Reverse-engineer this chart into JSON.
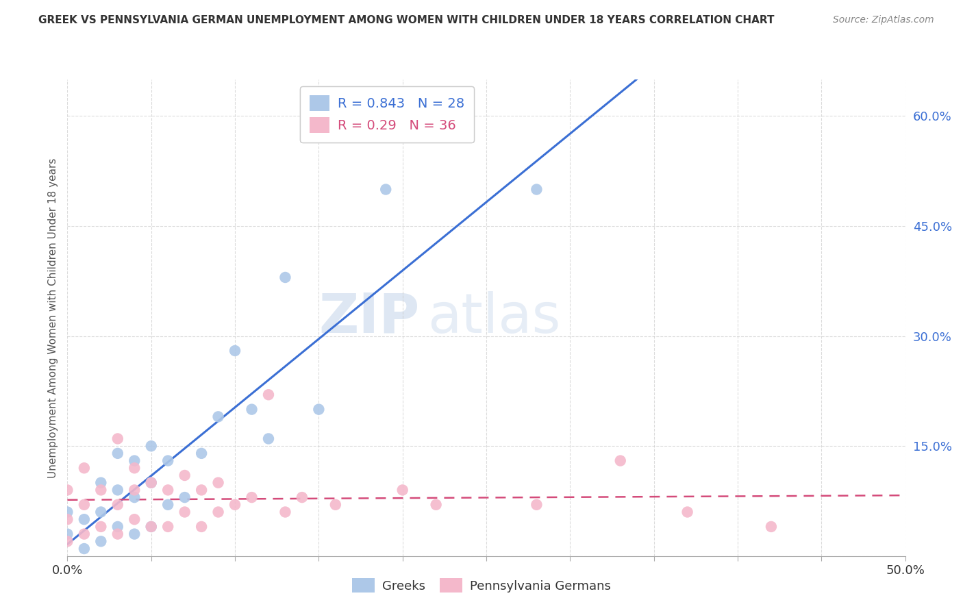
{
  "title": "GREEK VS PENNSYLVANIA GERMAN UNEMPLOYMENT AMONG WOMEN WITH CHILDREN UNDER 18 YEARS CORRELATION CHART",
  "source": "Source: ZipAtlas.com",
  "ylabel": "Unemployment Among Women with Children Under 18 years",
  "xlim": [
    0.0,
    0.5
  ],
  "ylim": [
    0.0,
    0.65
  ],
  "xticks": [
    0.0,
    0.05,
    0.1,
    0.15,
    0.2,
    0.25,
    0.3,
    0.35,
    0.4,
    0.45,
    0.5
  ],
  "yticks": [
    0.0,
    0.15,
    0.3,
    0.45,
    0.6
  ],
  "background_color": "#ffffff",
  "grid_color": "#cccccc",
  "watermark_zip": "ZIP",
  "watermark_atlas": "atlas",
  "greek": {
    "R": 0.843,
    "N": 28,
    "color": "#adc8e8",
    "line_color": "#3b6fd4",
    "label": "Greeks",
    "x": [
      0.0,
      0.0,
      0.01,
      0.01,
      0.02,
      0.02,
      0.02,
      0.03,
      0.03,
      0.03,
      0.04,
      0.04,
      0.04,
      0.05,
      0.05,
      0.05,
      0.06,
      0.06,
      0.07,
      0.08,
      0.09,
      0.1,
      0.11,
      0.12,
      0.13,
      0.15,
      0.19,
      0.28
    ],
    "y": [
      0.03,
      0.06,
      0.01,
      0.05,
      0.02,
      0.06,
      0.1,
      0.04,
      0.09,
      0.14,
      0.03,
      0.08,
      0.13,
      0.04,
      0.1,
      0.15,
      0.07,
      0.13,
      0.08,
      0.14,
      0.19,
      0.28,
      0.2,
      0.16,
      0.38,
      0.2,
      0.5,
      0.5
    ]
  },
  "pagerman": {
    "R": 0.29,
    "N": 36,
    "color": "#f4b8cb",
    "line_color": "#d44b7a",
    "label": "Pennsylvania Germans",
    "x": [
      0.0,
      0.0,
      0.0,
      0.01,
      0.01,
      0.01,
      0.02,
      0.02,
      0.03,
      0.03,
      0.03,
      0.04,
      0.04,
      0.04,
      0.05,
      0.05,
      0.06,
      0.06,
      0.07,
      0.07,
      0.08,
      0.08,
      0.09,
      0.09,
      0.1,
      0.11,
      0.12,
      0.13,
      0.14,
      0.16,
      0.2,
      0.22,
      0.28,
      0.33,
      0.37,
      0.42
    ],
    "y": [
      0.02,
      0.05,
      0.09,
      0.03,
      0.07,
      0.12,
      0.04,
      0.09,
      0.03,
      0.07,
      0.16,
      0.05,
      0.09,
      0.12,
      0.04,
      0.1,
      0.04,
      0.09,
      0.06,
      0.11,
      0.04,
      0.09,
      0.06,
      0.1,
      0.07,
      0.08,
      0.22,
      0.06,
      0.08,
      0.07,
      0.09,
      0.07,
      0.07,
      0.13,
      0.06,
      0.04
    ]
  }
}
